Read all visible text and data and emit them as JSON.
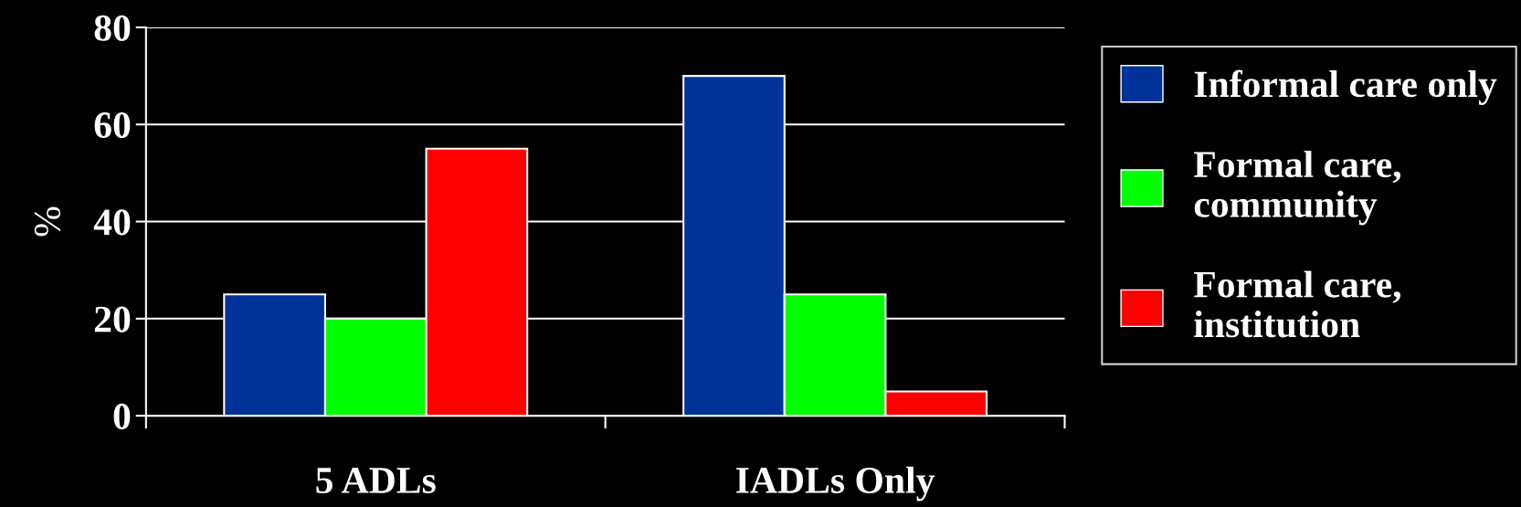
{
  "chart_data": {
    "type": "bar",
    "ylabel": "%",
    "categories": [
      "5 ADLs",
      "IADLs Only"
    ],
    "series": [
      {
        "name": "Informal care only",
        "color": "#003399",
        "values": [
          25,
          70
        ]
      },
      {
        "name": "Formal care,\ncommunity",
        "color": "#00ff00",
        "values": [
          20,
          25
        ]
      },
      {
        "name": "Formal care,\ninstitution",
        "color": "#ff0000",
        "values": [
          55,
          5
        ]
      }
    ],
    "ylim": [
      0,
      80
    ],
    "yticks": [
      0,
      20,
      40,
      60,
      80
    ],
    "grid": "y",
    "legend": "right"
  }
}
